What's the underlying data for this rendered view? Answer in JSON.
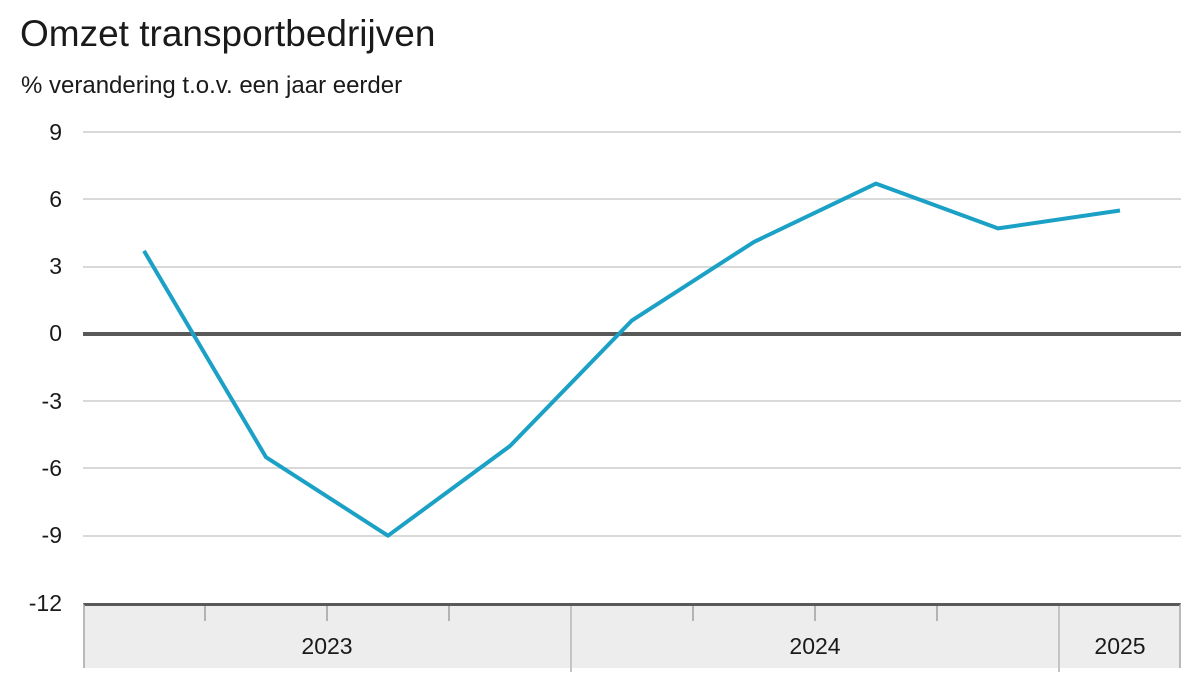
{
  "title": "Omzet transportbedrijven",
  "subtitle": "% verandering t.o.v. een jaar eerder",
  "colors": {
    "line": "#1ba1c6",
    "zero_line": "#595959",
    "gridline": "#d9d9d9",
    "band_fill": "#ededed",
    "band_border": "#595959",
    "tick": "#b3b3b3",
    "text": "#1a1a1a"
  },
  "chart_data": {
    "type": "line",
    "title": "Omzet transportbedrijven",
    "subtitle": "% verandering t.o.v. een jaar eerder",
    "ylabel": "% verandering t.o.v. een jaar eerder",
    "xlabel": "",
    "categories": [
      "2023 Q1",
      "2023 Q2",
      "2023 Q3",
      "2023 Q4",
      "2024 Q1",
      "2024 Q2",
      "2024 Q3",
      "2024 Q4",
      "2025 Q1"
    ],
    "series": [
      {
        "name": "Omzet transportbedrijven",
        "values": [
          3.7,
          -5.5,
          -9.0,
          -5.0,
          0.6,
          4.1,
          6.7,
          4.7,
          5.5
        ]
      }
    ],
    "yticks": [
      9,
      6,
      3,
      0,
      -3,
      -6,
      -9,
      -12
    ],
    "ylim": [
      -12,
      9
    ],
    "grid": "horizontal",
    "zero_baseline_emphasized": true,
    "legend_position": "none",
    "x_axis_years": [
      {
        "label": "2023",
        "quarters": 4
      },
      {
        "label": "2024",
        "quarters": 4
      },
      {
        "label": "2025",
        "quarters": 1
      }
    ]
  }
}
